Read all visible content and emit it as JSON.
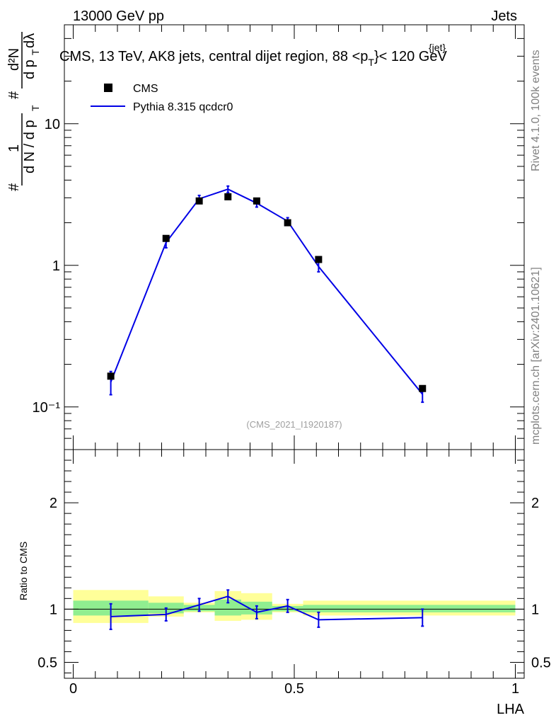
{
  "header": {
    "left": "13000 GeV pp",
    "right": "Jets"
  },
  "side_labels": {
    "rivet": "Rivet 4.1.0,  100k events",
    "mcplots": "mcplots.cern.ch [arXiv:2401.10621]"
  },
  "colors": {
    "data": "#000000",
    "mc": "#0000e6",
    "band_inner": "#90ee90",
    "band_outer": "#ffff99"
  },
  "chart_data": [
    {
      "type": "scatter",
      "panel": "main",
      "title": "CMS, 13 TeV, AK8 jets, central dijet region, 88 <p_T^{jet}< 120 GeV",
      "title_parts": {
        "prefix": "CMS, 13 TeV, AK8 jets, central dijet region, 88 <p",
        "sub": "T",
        "sup": "{jet}",
        "suffix": "}< 120 GeV"
      },
      "ylabel": "1/N dN/dp_T  d²N/dp_T dλ",
      "ylabel_parts": {
        "hash": "#",
        "one": "1",
        "dn": "d N / d p",
        "d2n": "d²N",
        "dpt": "d p",
        "dl": "dλ",
        "t": "T"
      },
      "yscale": "log",
      "xlim": [
        -0.02,
        1.02
      ],
      "ylim": [
        0.05,
        50
      ],
      "yticks": [
        {
          "value": 10,
          "label": "10"
        },
        {
          "value": 1,
          "label": "1"
        },
        {
          "value": 0.1,
          "label": "10⁻¹"
        }
      ],
      "watermark": "(CMS_2021_I1920187)",
      "legend": {
        "position": "top-left",
        "entries": [
          {
            "label": "CMS",
            "marker": "square"
          },
          {
            "label": "Pythia 8.315 qcdcr0",
            "marker": "line"
          }
        ]
      },
      "series": [
        {
          "name": "CMS",
          "x": [
            0.085,
            0.21,
            0.285,
            0.35,
            0.415,
            0.485,
            0.555,
            0.79
          ],
          "y": [
            0.165,
            1.55,
            2.85,
            3.05,
            2.85,
            2.0,
            1.1,
            0.135
          ]
        },
        {
          "name": "Pythia 8.315 qcdcr0",
          "x": [
            0.085,
            0.21,
            0.285,
            0.35,
            0.415,
            0.485,
            0.555,
            0.79
          ],
          "y": [
            0.15,
            1.45,
            2.95,
            3.45,
            2.75,
            2.05,
            0.98,
            0.123
          ],
          "err": [
            0.028,
            0.12,
            0.17,
            0.18,
            0.17,
            0.12,
            0.08,
            0.015
          ]
        }
      ]
    },
    {
      "type": "line",
      "panel": "ratio",
      "xlabel": "LHA",
      "ylabel": "Ratio to CMS",
      "xlim": [
        -0.02,
        1.02
      ],
      "ylim": [
        0.35,
        2.5
      ],
      "xticks": [
        {
          "value": 0,
          "label": "0"
        },
        {
          "value": 0.5,
          "label": "0.5"
        },
        {
          "value": 1,
          "label": "1"
        }
      ],
      "yticks": [
        {
          "value": 2,
          "label": "2"
        },
        {
          "value": 1,
          "label": "1"
        },
        {
          "value": 0.5,
          "label": "0.5"
        }
      ],
      "bands": [
        {
          "x0": 0.0,
          "x1": 0.17,
          "inner": [
            0.94,
            1.08
          ],
          "outer": [
            0.87,
            1.18
          ]
        },
        {
          "x0": 0.17,
          "x1": 0.25,
          "inner": [
            0.96,
            1.06
          ],
          "outer": [
            0.93,
            1.12
          ]
        },
        {
          "x0": 0.25,
          "x1": 0.32,
          "inner": [
            0.98,
            1.04
          ],
          "outer": [
            0.97,
            1.06
          ]
        },
        {
          "x0": 0.32,
          "x1": 0.38,
          "inner": [
            0.94,
            1.09
          ],
          "outer": [
            0.89,
            1.17
          ]
        },
        {
          "x0": 0.38,
          "x1": 0.45,
          "inner": [
            0.95,
            1.07
          ],
          "outer": [
            0.9,
            1.15
          ]
        },
        {
          "x0": 0.45,
          "x1": 0.52,
          "inner": [
            0.98,
            1.03
          ],
          "outer": [
            0.97,
            1.05
          ]
        },
        {
          "x0": 0.52,
          "x1": 1.0,
          "inner": [
            0.97,
            1.04
          ],
          "outer": [
            0.94,
            1.08
          ]
        }
      ],
      "series": [
        {
          "name": "Pythia 8.315 qcdcr0 / CMS",
          "x": [
            0.085,
            0.21,
            0.285,
            0.35,
            0.415,
            0.485,
            0.555,
            0.79
          ],
          "y": [
            0.93,
            0.95,
            1.04,
            1.12,
            0.97,
            1.03,
            0.9,
            0.92
          ],
          "err": [
            0.12,
            0.06,
            0.06,
            0.06,
            0.06,
            0.06,
            0.07,
            0.08
          ]
        }
      ]
    }
  ]
}
